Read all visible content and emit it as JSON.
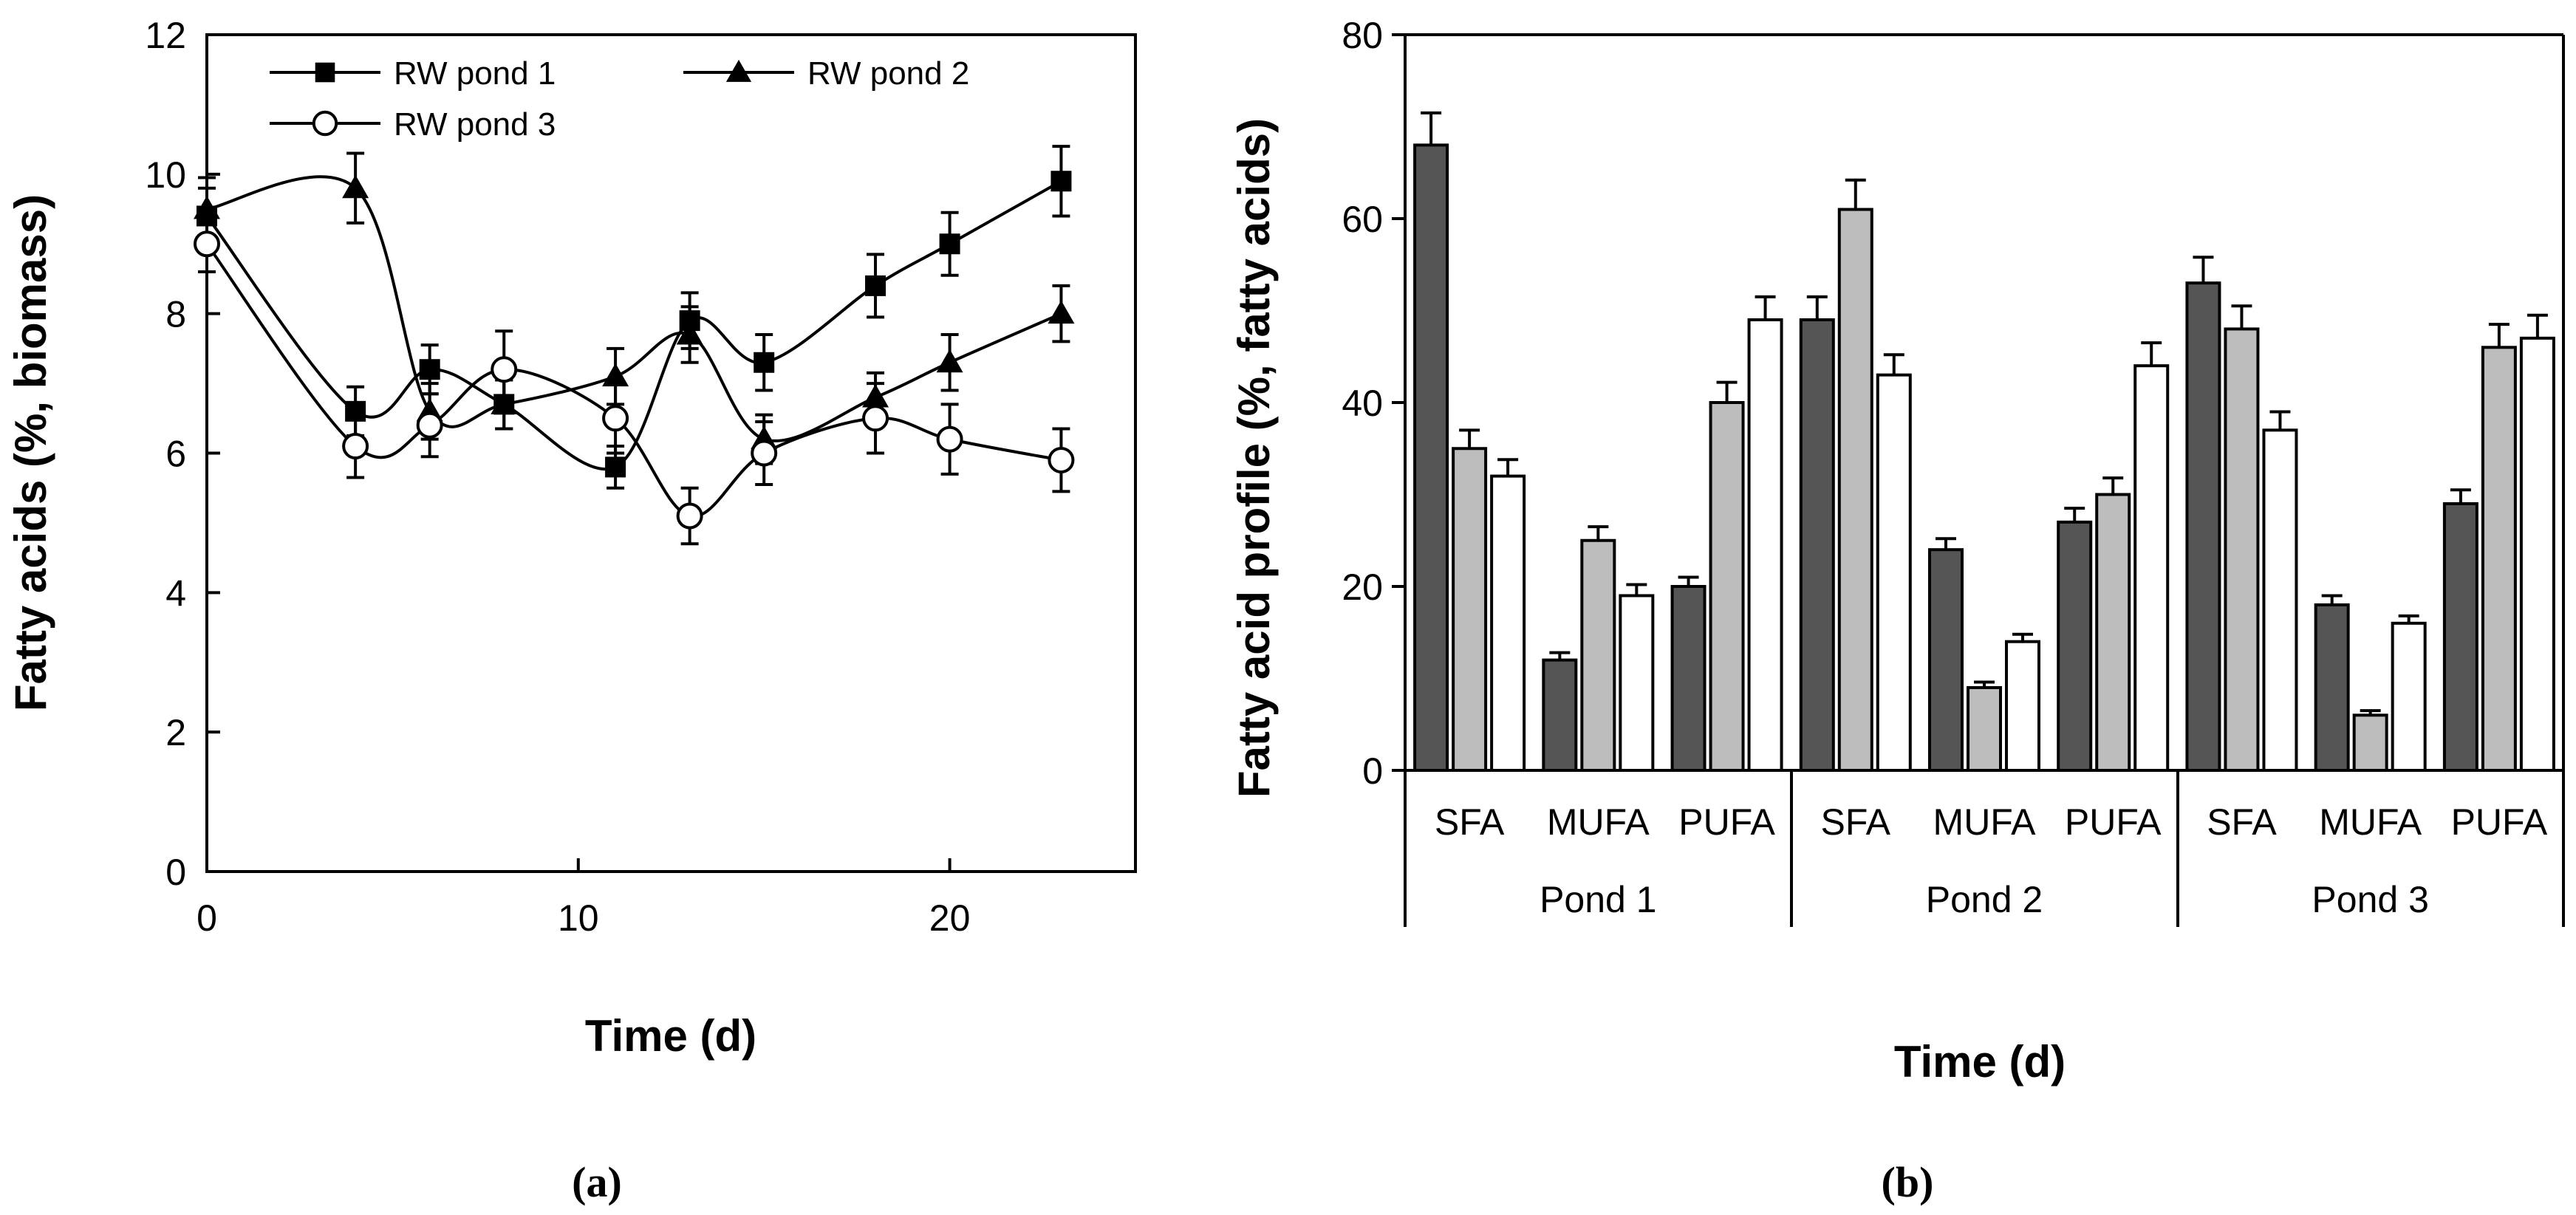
{
  "panels": {
    "a": {
      "caption": "(a)"
    },
    "b": {
      "caption": "(b)"
    }
  },
  "chart_data": [
    {
      "type": "line",
      "panel": "(a)",
      "title": "",
      "xlabel": "Time (d)",
      "ylabel": "Fatty acids (%, biomass)",
      "xlim": [
        0,
        25
      ],
      "ylim": [
        0,
        12
      ],
      "xticks": [
        0,
        10,
        20
      ],
      "yticks": [
        0,
        2,
        4,
        6,
        8,
        10,
        12
      ],
      "legend_position": "top-left",
      "series": [
        {
          "name": "RW pond 1",
          "marker": "filled-square",
          "x": [
            0,
            4,
            6,
            8,
            11,
            13,
            15,
            18,
            20,
            23
          ],
          "y": [
            9.4,
            6.6,
            7.2,
            6.7,
            5.8,
            7.9,
            7.3,
            8.4,
            9.0,
            9.9
          ],
          "error": [
            0.4,
            0.35,
            0.35,
            0.35,
            0.3,
            0.4,
            0.4,
            0.45,
            0.45,
            0.5
          ]
        },
        {
          "name": "RW pond 2",
          "marker": "filled-triangle",
          "x": [
            0,
            4,
            6,
            8,
            11,
            13,
            15,
            18,
            20,
            23
          ],
          "y": [
            9.5,
            9.8,
            6.6,
            6.7,
            7.1,
            7.7,
            6.2,
            6.8,
            7.3,
            8.0
          ],
          "error": [
            0.45,
            0.5,
            0.4,
            0.35,
            0.4,
            0.4,
            0.35,
            0.35,
            0.4,
            0.4
          ]
        },
        {
          "name": "RW pond 3",
          "marker": "open-circle",
          "x": [
            0,
            4,
            6,
            8,
            11,
            13,
            15,
            18,
            20,
            23
          ],
          "y": [
            9.0,
            6.1,
            6.4,
            7.2,
            6.5,
            5.1,
            6.0,
            6.5,
            6.2,
            5.9
          ],
          "error": [
            0.4,
            0.45,
            0.45,
            0.55,
            0.5,
            0.4,
            0.45,
            0.5,
            0.5,
            0.45
          ]
        }
      ]
    },
    {
      "type": "bar",
      "panel": "(b)",
      "title": "",
      "xlabel": "Time (d)",
      "ylabel": "Fatty acid profile (%, fatty acids)",
      "ylim": [
        0,
        80
      ],
      "yticks": [
        0,
        20,
        40,
        60,
        80
      ],
      "groups": [
        {
          "name": "Pond 1",
          "categories": [
            "SFA",
            "MUFA",
            "PUFA"
          ]
        },
        {
          "name": "Pond 2",
          "categories": [
            "SFA",
            "MUFA",
            "PUFA"
          ]
        },
        {
          "name": "Pond 3",
          "categories": [
            "SFA",
            "MUFA",
            "PUFA"
          ]
        }
      ],
      "series_colors": [
        "#555555",
        "#bdbdbd",
        "#ffffff"
      ],
      "values": [
        [
          [
            68,
            35,
            32
          ],
          [
            12,
            25,
            19
          ],
          [
            20,
            40,
            49
          ]
        ],
        [
          [
            49,
            61,
            43
          ],
          [
            24,
            9,
            14
          ],
          [
            27,
            30,
            44
          ]
        ],
        [
          [
            53,
            48,
            37
          ],
          [
            18,
            6,
            16
          ],
          [
            29,
            46,
            47
          ]
        ]
      ],
      "errors": [
        [
          [
            3.5,
            2.0,
            1.8
          ],
          [
            0.8,
            1.5,
            1.2
          ],
          [
            1.0,
            2.2,
            2.5
          ]
        ],
        [
          [
            2.5,
            3.2,
            2.2
          ],
          [
            1.2,
            0.6,
            0.8
          ],
          [
            1.5,
            1.8,
            2.5
          ]
        ],
        [
          [
            2.8,
            2.5,
            2.0
          ],
          [
            1.0,
            0.5,
            0.8
          ],
          [
            1.5,
            2.5,
            2.5
          ]
        ]
      ]
    }
  ]
}
